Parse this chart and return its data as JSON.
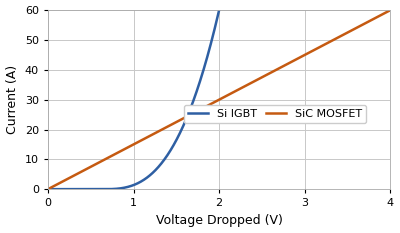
{
  "title": "",
  "xlabel": "Voltage Dropped (V)",
  "ylabel": "Current (A)",
  "xlim": [
    0,
    4
  ],
  "ylim": [
    0,
    60
  ],
  "xticks": [
    0,
    1,
    2,
    3,
    4
  ],
  "yticks": [
    0,
    10,
    20,
    30,
    40,
    50,
    60
  ],
  "igbt_color": "#2e5fa3",
  "mosfet_color": "#c55a11",
  "igbt_label": "Si IGBT",
  "mosfet_label": "SiC MOSFET",
  "igbt_threshold": 0.65,
  "igbt_k": 35.0,
  "igbt_n": 2.8,
  "igbt_vmax": 2.0,
  "mosfet_slope": 15.0,
  "background_color": "#ffffff",
  "grid_color": "#c8c8c8",
  "line_width": 1.8,
  "figsize": [
    4.0,
    2.33
  ],
  "dpi": 100
}
